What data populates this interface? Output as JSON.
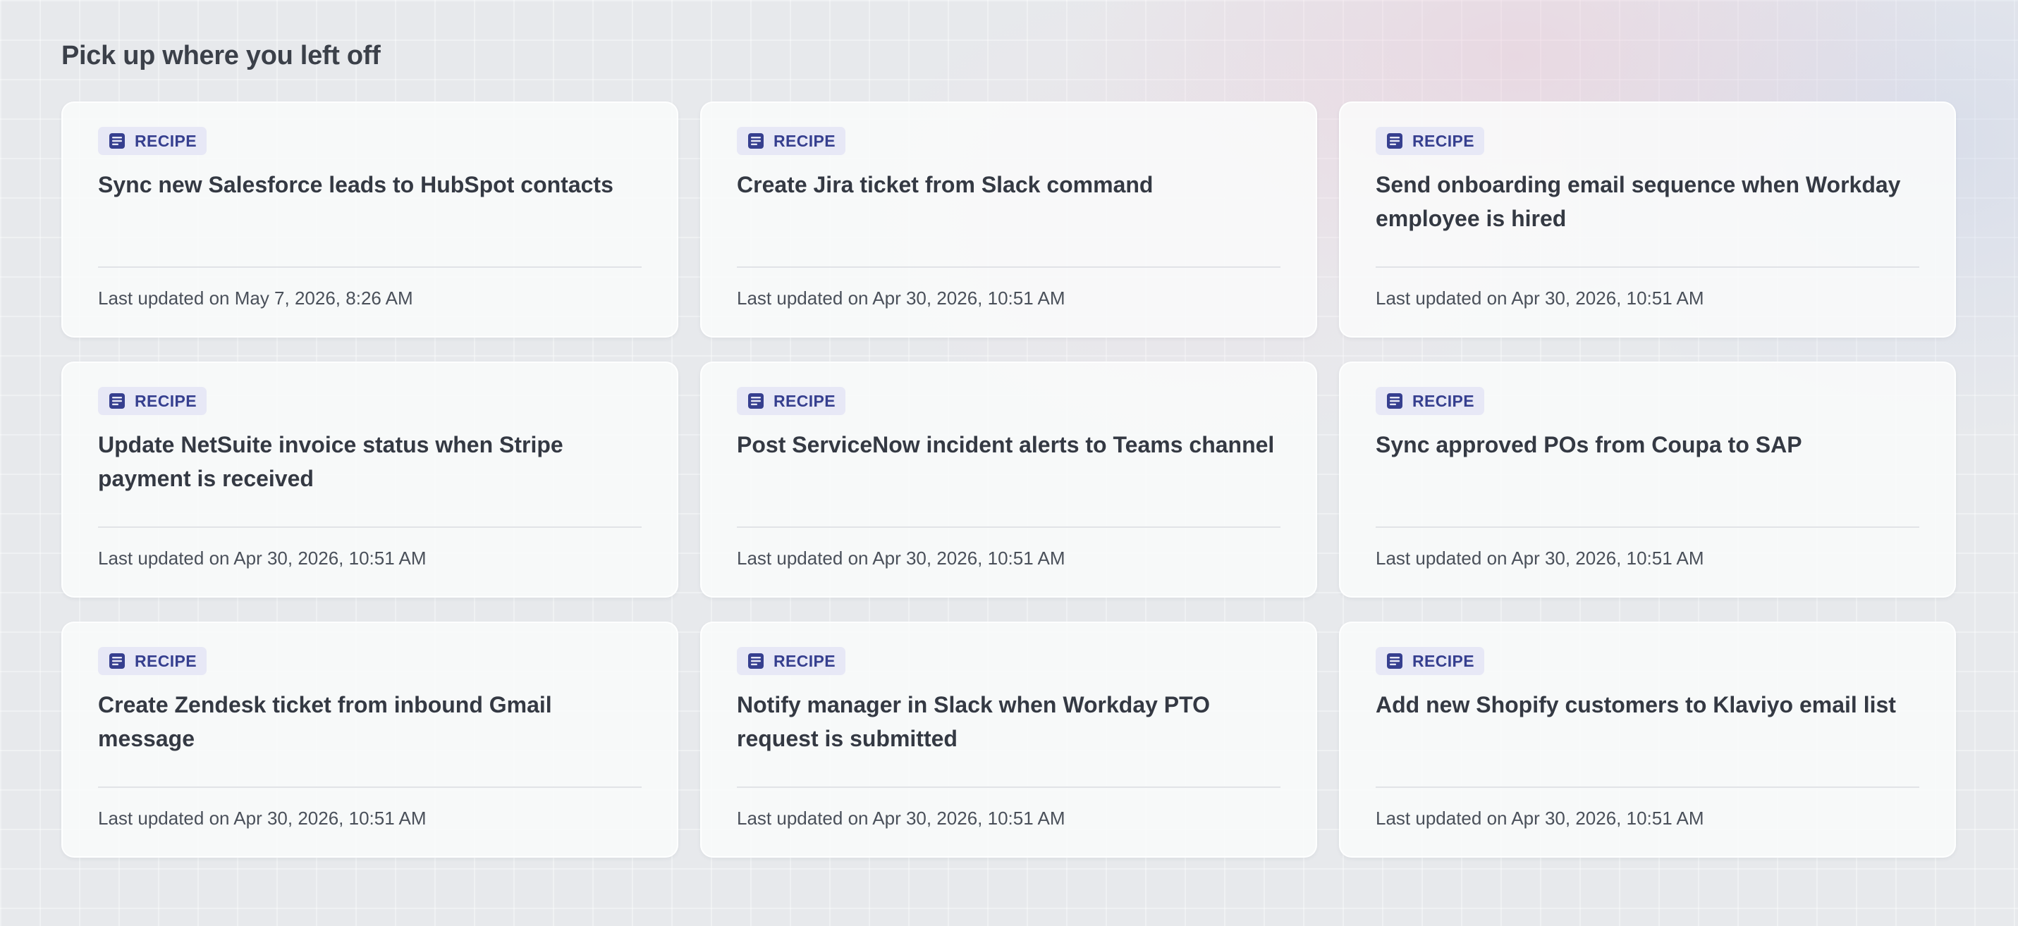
{
  "section": {
    "title": "Pick up where you left off"
  },
  "badge_color": "#363f8f",
  "badge_bg": "#e7e8f6",
  "cards": [
    {
      "badge": "RECIPE",
      "icon": "document-icon",
      "title": "Sync new Salesforce leads to HubSpot contacts",
      "updated": "Last updated on May 7, 2026, 8:26 AM"
    },
    {
      "badge": "RECIPE",
      "icon": "document-icon",
      "title": "Create Jira ticket from Slack command",
      "updated": "Last updated on Apr 30, 2026, 10:51 AM"
    },
    {
      "badge": "RECIPE",
      "icon": "document-icon",
      "title": "Send onboarding email sequence when Workday employee is hired",
      "updated": "Last updated on Apr 30, 2026, 10:51 AM"
    },
    {
      "badge": "RECIPE",
      "icon": "document-icon",
      "title": "Update NetSuite invoice status when Stripe payment is received",
      "updated": "Last updated on Apr 30, 2026, 10:51 AM"
    },
    {
      "badge": "RECIPE",
      "icon": "document-icon",
      "title": "Post ServiceNow incident alerts to Teams channel",
      "updated": "Last updated on Apr 30, 2026, 10:51 AM"
    },
    {
      "badge": "RECIPE",
      "icon": "document-icon",
      "title": "Sync approved POs from Coupa to SAP",
      "updated": "Last updated on Apr 30, 2026, 10:51 AM"
    },
    {
      "badge": "RECIPE",
      "icon": "document-icon",
      "title": "Create Zendesk ticket from inbound Gmail message",
      "updated": "Last updated on Apr 30, 2026, 10:51 AM"
    },
    {
      "badge": "RECIPE",
      "icon": "document-icon",
      "title": "Notify manager in Slack when Workday PTO request is submitted",
      "updated": "Last updated on Apr 30, 2026, 10:51 AM"
    },
    {
      "badge": "RECIPE",
      "icon": "document-icon",
      "title": "Add new Shopify customers to Klaviyo email list",
      "updated": "Last updated on Apr 30, 2026, 10:51 AM"
    }
  ]
}
